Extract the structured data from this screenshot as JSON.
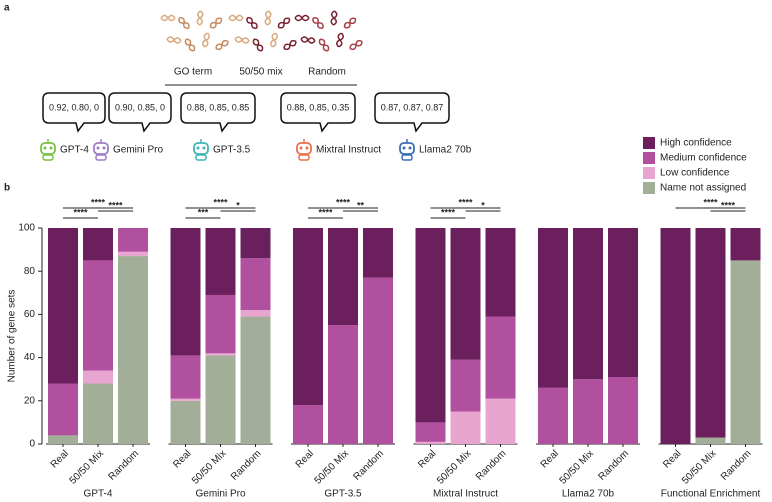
{
  "panel_a": {
    "label": "a",
    "datasets": [
      "GO term",
      "50/50 mix",
      "Random"
    ],
    "models": [
      {
        "name": "GPT-4",
        "scores": "0.92, 0.80, 0",
        "color": "#7ac143"
      },
      {
        "name": "Gemini Pro",
        "scores": "0.90, 0.85, 0",
        "color": "#a07cc5"
      },
      {
        "name": "GPT-3.5",
        "scores": "0.88, 0.85, 0.85",
        "color": "#3fb5b5"
      },
      {
        "name": "Mixtral Instruct",
        "scores": "0.88, 0.85, 0.35",
        "color": "#e8704f"
      },
      {
        "name": "Llama2 70b",
        "scores": "0.87, 0.87, 0.87",
        "color": "#3d6fb6"
      }
    ]
  },
  "chart_data": {
    "type": "bar",
    "stacked": true,
    "label": "b",
    "ylabel": "Number of gene sets",
    "ylim": [
      0,
      100
    ],
    "yticks": [
      0,
      20,
      40,
      60,
      80,
      100
    ],
    "groups": [
      "GPT-4",
      "Gemini Pro",
      "GPT-3.5",
      "Mixtral Instruct",
      "Llama2 70b",
      "Functional Enrichment"
    ],
    "categories": [
      "Real",
      "50/50 Mix",
      "Random",
      "Real",
      "50/50 Mix",
      "Random",
      "Real",
      "50/50 Mix",
      "Random",
      "Real",
      "50/50 Mix",
      "Random",
      "Real",
      "50/50 Mix",
      "Random",
      "Real",
      "50/50 Mix",
      "Random"
    ],
    "series": [
      {
        "name": "High confidence",
        "color": "#6b1f5c",
        "values": [
          72,
          15,
          0,
          59,
          31,
          14,
          82,
          45,
          23,
          90,
          61,
          41,
          74,
          70,
          69,
          100,
          97,
          15
        ]
      },
      {
        "name": "Medium confidence",
        "color": "#b0509f",
        "values": [
          24,
          51,
          11,
          20,
          27,
          24,
          18,
          55,
          77,
          9,
          24,
          38,
          26,
          30,
          31,
          0,
          0,
          0
        ]
      },
      {
        "name": "Low confidence",
        "color": "#e8a5cf",
        "values": [
          0,
          6,
          2,
          1,
          1,
          3,
          0,
          0,
          0,
          1,
          15,
          21,
          0,
          0,
          0,
          0,
          0,
          0
        ]
      },
      {
        "name": "Name not assigned",
        "color": "#a3ae98",
        "values": [
          4,
          28,
          87,
          20,
          41,
          59,
          0,
          0,
          0,
          0,
          0,
          0,
          0,
          0,
          0,
          0,
          3,
          85
        ]
      }
    ],
    "annotations": [
      {
        "from": 0,
        "to": 2,
        "label": "****"
      },
      {
        "from": 0,
        "to": 1,
        "label": "****"
      },
      {
        "from": 1,
        "to": 2,
        "label": "****"
      },
      {
        "from": 3,
        "to": 5,
        "label": "****"
      },
      {
        "from": 3,
        "to": 4,
        "label": "***"
      },
      {
        "from": 4,
        "to": 5,
        "label": "*"
      },
      {
        "from": 6,
        "to": 8,
        "label": "****"
      },
      {
        "from": 6,
        "to": 7,
        "label": "****"
      },
      {
        "from": 7,
        "to": 8,
        "label": "**"
      },
      {
        "from": 9,
        "to": 11,
        "label": "****"
      },
      {
        "from": 9,
        "to": 10,
        "label": "****"
      },
      {
        "from": 10,
        "to": 11,
        "label": "*"
      },
      {
        "from": 15,
        "to": 17,
        "label": "****"
      },
      {
        "from": 16,
        "to": 17,
        "label": "****"
      }
    ]
  }
}
